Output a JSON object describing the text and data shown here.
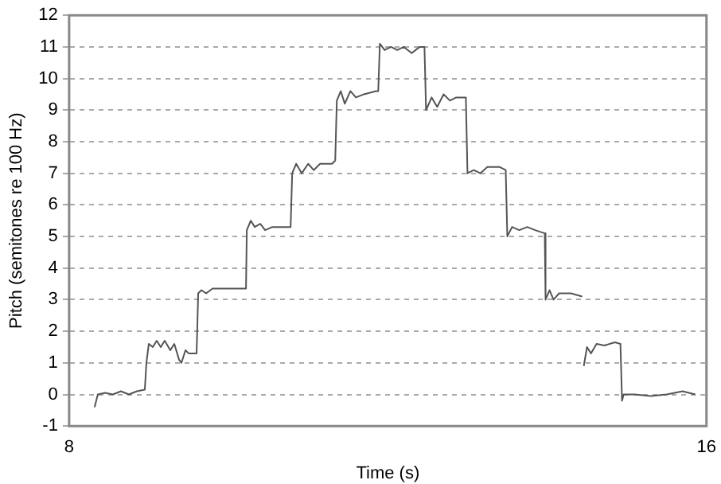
{
  "chart_data": {
    "type": "line",
    "xlabel": "Time (s)",
    "ylabel": "Pitch (semitones re 100 Hz)",
    "x": [
      8.32,
      8.36,
      8.45,
      8.55,
      8.65,
      8.75,
      8.85,
      8.95,
      8.97,
      9.0,
      9.05,
      9.1,
      9.15,
      9.2,
      9.27,
      9.32,
      9.38,
      9.41,
      9.46,
      9.5,
      9.6,
      9.62,
      9.66,
      9.72,
      9.8,
      9.9,
      10.22,
      10.23,
      10.28,
      10.33,
      10.4,
      10.46,
      10.55,
      10.78,
      10.8,
      10.85,
      10.92,
      11.0,
      11.07,
      11.15,
      11.3,
      11.34,
      11.36,
      11.41,
      11.46,
      11.53,
      11.6,
      11.7,
      11.85,
      11.88,
      11.9,
      11.96,
      12.04,
      12.12,
      12.2,
      12.3,
      12.4,
      12.46,
      12.48,
      12.55,
      12.62,
      12.7,
      12.78,
      12.86,
      12.98,
      13.0,
      13.08,
      13.16,
      13.25,
      13.4,
      13.48,
      13.5,
      13.56,
      13.65,
      13.75,
      13.85,
      13.97,
      13.98,
      14.03,
      14.08,
      14.15,
      14.3,
      14.44,
      14.45,
      14.46,
      14.5,
      14.55,
      14.62,
      14.72,
      14.85,
      14.92,
      14.94,
      14.96,
      15.1,
      15.3,
      15.5,
      15.7,
      15.86
    ],
    "series": [
      {
        "color": "#555555",
        "values": [
          -0.4,
          0.0,
          0.05,
          0.0,
          0.1,
          0.0,
          0.1,
          0.15,
          1.0,
          1.6,
          1.5,
          1.7,
          1.5,
          1.7,
          1.4,
          1.6,
          1.1,
          1.0,
          1.4,
          1.3,
          1.3,
          3.2,
          3.3,
          3.2,
          3.35,
          3.35,
          3.35,
          5.2,
          5.5,
          5.3,
          5.4,
          5.2,
          5.3,
          5.3,
          7.0,
          7.3,
          7.0,
          7.3,
          7.1,
          7.3,
          7.3,
          7.4,
          9.3,
          9.6,
          9.2,
          9.6,
          9.4,
          9.5,
          9.6,
          9.6,
          11.1,
          10.9,
          11.0,
          10.9,
          11.0,
          10.8,
          11.0,
          11.0,
          9.0,
          9.4,
          9.1,
          9.5,
          9.3,
          9.4,
          9.4,
          7.0,
          7.1,
          7.0,
          7.2,
          7.2,
          7.1,
          5.0,
          5.3,
          5.2,
          5.3,
          5.2,
          5.1,
          3.0,
          3.3,
          3.0,
          3.2,
          3.2,
          3.1,
          null,
          0.9,
          1.5,
          1.3,
          1.6,
          1.55,
          1.65,
          1.6,
          -0.2,
          0.0,
          0.0,
          -0.05,
          0.0,
          0.1,
          0.0
        ]
      }
    ],
    "xlim": [
      8,
      16
    ],
    "xticks": [
      8,
      16
    ],
    "ylim": [
      -1,
      12
    ],
    "yticks": [
      -1,
      0,
      1,
      2,
      3,
      4,
      5,
      6,
      7,
      8,
      9,
      10,
      11,
      12
    ],
    "grid": "y",
    "legend": false,
    "marker": "none",
    "line_style": "solid"
  }
}
